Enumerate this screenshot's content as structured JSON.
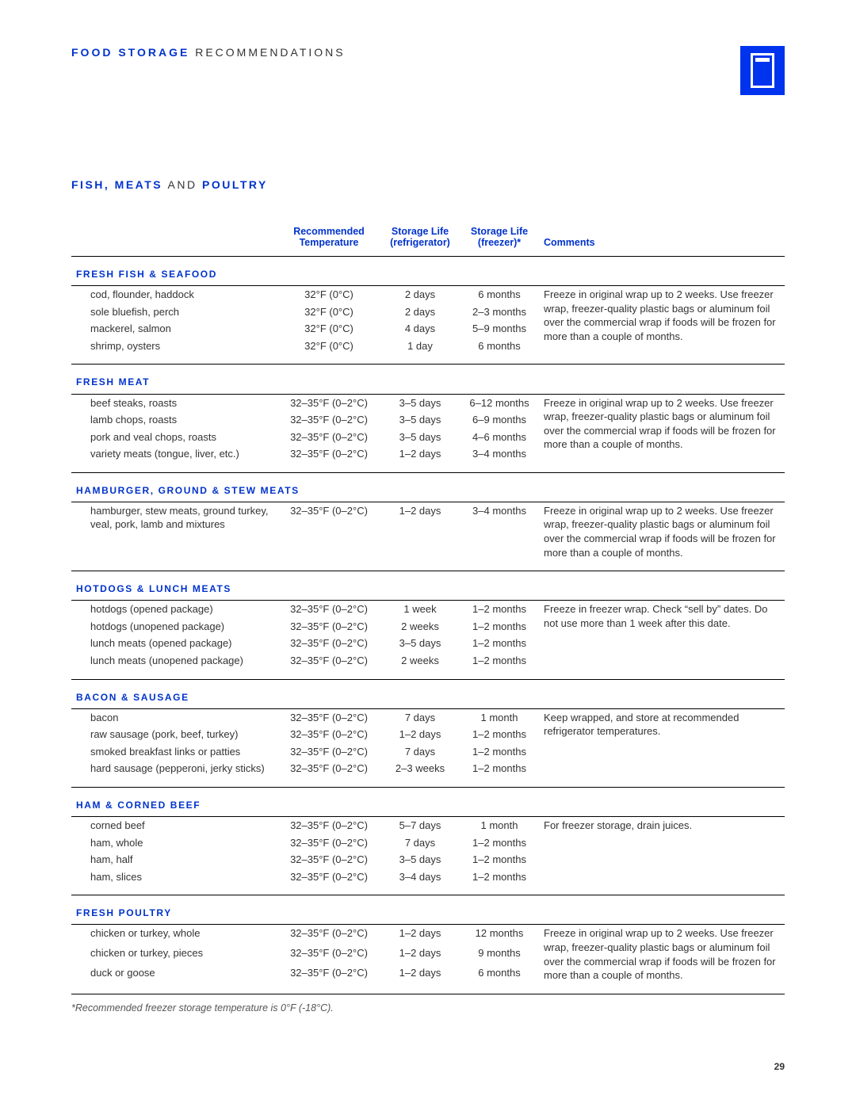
{
  "colors": {
    "accent": "#0033cc",
    "text": "#333333",
    "rule": "#000000",
    "background": "#ffffff"
  },
  "header": {
    "title_bold": "FOOD STORAGE",
    "title_light": "RECOMMENDATIONS"
  },
  "section": {
    "bold1": "FISH, MEATS",
    "mid": "AND",
    "bold2": "POULTRY"
  },
  "columns": {
    "item": "",
    "temp": "Recommended Temperature",
    "refrigerator": "Storage Life (refrigerator)",
    "freezer": "Storage Life (freezer)*",
    "comments": "Comments"
  },
  "categories": [
    {
      "name": "FRESH FISH & SEAFOOD",
      "comment": "Freeze in original wrap up to 2 weeks. Use freezer wrap, freezer-quality plastic bags or aluminum foil over the commercial wrap if foods will be frozen for more than a couple of months.",
      "rows": [
        {
          "item": "cod, flounder, haddock",
          "temp": "32°F (0°C)",
          "ref": "2 days",
          "frz": "6 months"
        },
        {
          "item": "sole bluefish, perch",
          "temp": "32°F (0°C)",
          "ref": "2 days",
          "frz": "2–3 months"
        },
        {
          "item": "mackerel, salmon",
          "temp": "32°F (0°C)",
          "ref": "4 days",
          "frz": "5–9 months"
        },
        {
          "item": "shrimp, oysters",
          "temp": "32°F (0°C)",
          "ref": "1 day",
          "frz": "6 months"
        }
      ]
    },
    {
      "name": "FRESH MEAT",
      "comment": "Freeze in original wrap up to 2 weeks. Use freezer wrap, freezer-quality plastic bags or aluminum foil over the commercial wrap if foods will be frozen for more than a couple of months.",
      "rows": [
        {
          "item": "beef steaks, roasts",
          "temp": "32–35°F (0–2°C)",
          "ref": "3–5 days",
          "frz": "6–12 months"
        },
        {
          "item": "lamb chops, roasts",
          "temp": "32–35°F (0–2°C)",
          "ref": "3–5 days",
          "frz": "6–9 months"
        },
        {
          "item": "pork and veal chops, roasts",
          "temp": "32–35°F (0–2°C)",
          "ref": "3–5 days",
          "frz": "4–6 months"
        },
        {
          "item": "variety meats (tongue, liver, etc.)",
          "temp": "32–35°F (0–2°C)",
          "ref": "1–2 days",
          "frz": "3–4 months"
        }
      ]
    },
    {
      "name": "HAMBURGER, GROUND & STEW MEATS",
      "comment": "Freeze in original wrap up to 2 weeks. Use freezer wrap, freezer-quality plastic bags or aluminum foil over the commercial wrap if foods will be frozen for more than a couple of months.",
      "rows": [
        {
          "item": "hamburger, stew meats, ground turkey, veal, pork, lamb and mixtures",
          "temp": "32–35°F (0–2°C)",
          "ref": "1–2 days",
          "frz": "3–4 months"
        }
      ]
    },
    {
      "name": "HOTDOGS & LUNCH MEATS",
      "comment": "Freeze in freezer wrap. Check “sell by” dates. Do not use more than 1 week after this date.",
      "rows": [
        {
          "item": "hotdogs (opened package)",
          "temp": "32–35°F (0–2°C)",
          "ref": "1 week",
          "frz": "1–2 months"
        },
        {
          "item": "hotdogs (unopened package)",
          "temp": "32–35°F (0–2°C)",
          "ref": "2 weeks",
          "frz": "1–2 months"
        },
        {
          "item": "lunch meats (opened package)",
          "temp": "32–35°F (0–2°C)",
          "ref": "3–5 days",
          "frz": "1–2 months"
        },
        {
          "item": "lunch meats (unopened package)",
          "temp": "32–35°F (0–2°C)",
          "ref": "2 weeks",
          "frz": "1–2 months"
        }
      ]
    },
    {
      "name": "BACON & SAUSAGE",
      "comment": "Keep wrapped, and store at recommended refrigerator temperatures.",
      "rows": [
        {
          "item": "bacon",
          "temp": "32–35°F (0–2°C)",
          "ref": "7 days",
          "frz": "1 month"
        },
        {
          "item": "raw sausage (pork, beef, turkey)",
          "temp": "32–35°F (0–2°C)",
          "ref": "1–2 days",
          "frz": "1–2 months"
        },
        {
          "item": "smoked breakfast links or patties",
          "temp": "32–35°F (0–2°C)",
          "ref": "7 days",
          "frz": "1–2 months"
        },
        {
          "item": "hard sausage (pepperoni, jerky sticks)",
          "temp": "32–35°F (0–2°C)",
          "ref": "2–3 weeks",
          "frz": "1–2 months"
        }
      ]
    },
    {
      "name": "HAM & CORNED BEEF",
      "comment": "For freezer storage, drain juices.",
      "rows": [
        {
          "item": "corned beef",
          "temp": "32–35°F (0–2°C)",
          "ref": "5–7 days",
          "frz": "1 month"
        },
        {
          "item": "ham, whole",
          "temp": "32–35°F (0–2°C)",
          "ref": "7 days",
          "frz": "1–2 months"
        },
        {
          "item": "ham, half",
          "temp": "32–35°F (0–2°C)",
          "ref": "3–5 days",
          "frz": "1–2 months"
        },
        {
          "item": "ham, slices",
          "temp": "32–35°F (0–2°C)",
          "ref": "3–4 days",
          "frz": "1–2 months"
        }
      ]
    },
    {
      "name": "FRESH POULTRY",
      "comment": "Freeze in original wrap up to 2 weeks. Use freezer wrap, freezer-quality plastic bags or aluminum foil over the commercial wrap if foods will be frozen for more than a couple of months.",
      "rows": [
        {
          "item": "chicken or turkey, whole",
          "temp": "32–35°F (0–2°C)",
          "ref": "1–2 days",
          "frz": "12 months"
        },
        {
          "item": "chicken or turkey, pieces",
          "temp": "32–35°F (0–2°C)",
          "ref": "1–2 days",
          "frz": "9 months"
        },
        {
          "item": "duck or goose",
          "temp": "32–35°F (0–2°C)",
          "ref": "1–2 days",
          "frz": "6 months"
        }
      ]
    }
  ],
  "footnote": "*Recommended freezer storage temperature is 0°F (-18°C).",
  "page_number": "29"
}
